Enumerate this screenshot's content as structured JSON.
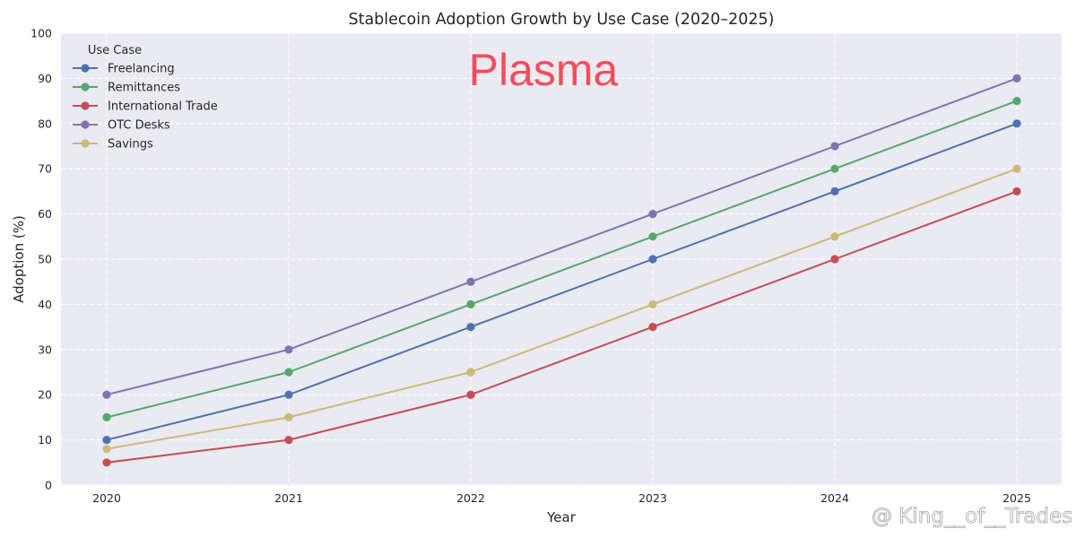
{
  "chart_data": {
    "type": "line",
    "title": "Stablecoin Adoption Growth by Use Case (2020–2025)",
    "xlabel": "Year",
    "ylabel": "Adoption (%)",
    "x": [
      2020,
      2021,
      2022,
      2023,
      2024,
      2025
    ],
    "x_tick_labels": [
      "2020",
      "2021",
      "2022",
      "2023",
      "2024",
      "2025"
    ],
    "ylim": [
      0,
      100
    ],
    "y_ticks": [
      0,
      10,
      20,
      30,
      40,
      50,
      60,
      70,
      80,
      90,
      100
    ],
    "y_tick_labels": [
      "0",
      "10",
      "20",
      "30",
      "40",
      "50",
      "60",
      "70",
      "80",
      "90",
      "100"
    ],
    "grid": true,
    "legend": {
      "title": "Use Case",
      "position": "top-left"
    },
    "series": [
      {
        "name": "Freelancing",
        "color": "#4c72b0",
        "values": [
          10,
          20,
          35,
          50,
          65,
          80
        ]
      },
      {
        "name": "Remittances",
        "color": "#55a868",
        "values": [
          15,
          25,
          40,
          55,
          70,
          85
        ]
      },
      {
        "name": "International Trade",
        "color": "#c44e52",
        "values": [
          5,
          10,
          20,
          35,
          50,
          65
        ]
      },
      {
        "name": "OTC Desks",
        "color": "#8172b2",
        "values": [
          20,
          30,
          45,
          60,
          75,
          90
        ]
      },
      {
        "name": "Savings",
        "color": "#ccb974",
        "values": [
          8,
          15,
          25,
          40,
          55,
          70
        ]
      }
    ]
  },
  "overlay": {
    "text": "Plasma",
    "color": "#f24e5a"
  },
  "watermark": {
    "text": "@ King__of__Trades"
  },
  "theme": {
    "plot_bg": "#eaeaf2",
    "grid": "#ffffff"
  }
}
